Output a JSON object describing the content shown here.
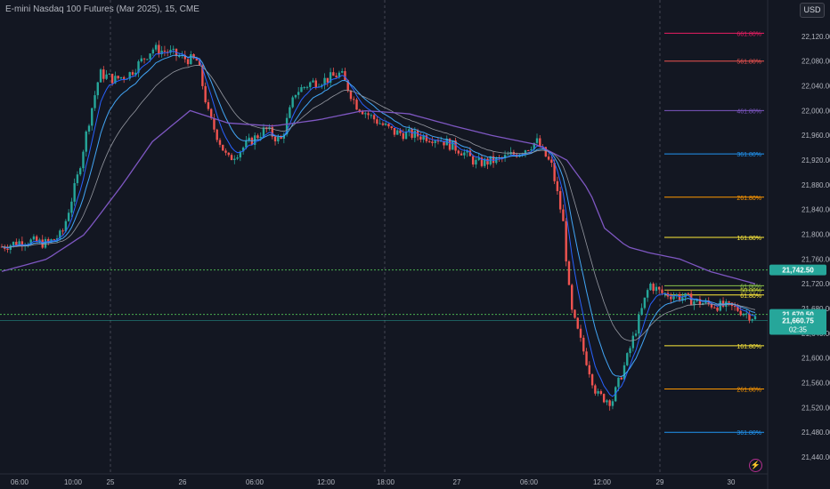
{
  "header": {
    "title": "E-mini Nasdaq 100 Futures (Mar 2025), 15, CME",
    "currency": "USD"
  },
  "colors": {
    "background": "#131722",
    "up": "#26a69a",
    "down": "#ef5350",
    "grid": "#2a2e39",
    "ema_fast": "#2962ff",
    "ema_mid": "#42a5f5",
    "ema_slow": "#7e57c2",
    "ma_thin": "#9598a1",
    "dotted": "#4caf50"
  },
  "icons": {
    "bolt": "lightning-icon"
  },
  "chart_data": {
    "type": "candlestick",
    "x_axis": {
      "ticks": [
        "06:00",
        "10:00",
        "25",
        "26",
        "06:00",
        "12:00",
        "18:00",
        "27",
        "06:00",
        "12:00",
        "29",
        "30"
      ],
      "day_separators": [
        "25",
        "26",
        "27",
        "29",
        "30"
      ]
    },
    "y_axis": {
      "range": [
        21420,
        22150
      ],
      "ticks": [
        "22,120.00",
        "22,080.00",
        "22,040.00",
        "22,000.00",
        "21,960.00",
        "21,920.00",
        "21,880.00",
        "21,840.00",
        "21,800.00",
        "21,760.00",
        "21,720.00",
        "21,680.00",
        "21,640.00",
        "21,600.00",
        "21,560.00",
        "21,520.00",
        "21,480.00",
        "21,440.00"
      ]
    },
    "last_price": {
      "value": 21660.75,
      "label": "21,660.75",
      "countdown": "02:35"
    },
    "price_labels": [
      {
        "value": 21742.5,
        "label": "21,742.50",
        "color": "#26a69a"
      },
      {
        "value": 21670.5,
        "label": "21,670.50",
        "color": "#26a69a"
      }
    ],
    "fib_levels": [
      {
        "label": "661.80%",
        "value": 22125,
        "color": "#e91e63"
      },
      {
        "label": "561.80%",
        "value": 22080,
        "color": "#ef5350"
      },
      {
        "label": "461.80%",
        "value": 22000,
        "color": "#7e57c2"
      },
      {
        "label": "361.80%",
        "value": 21930,
        "color": "#2196f3"
      },
      {
        "label": "261.80%",
        "value": 21860,
        "color": "#ff9800"
      },
      {
        "label": "161.80%",
        "value": 21795,
        "color": "#ffeb3b"
      },
      {
        "label": "61.80%",
        "value": 21717,
        "color": "#8bc34a"
      },
      {
        "label": "50.00%",
        "value": 21710,
        "color": "#cddc39"
      },
      {
        "label": "61.80%",
        "value": 21702,
        "color": "#ffeb3b"
      },
      {
        "label": "161.80%",
        "value": 21620,
        "color": "#ffeb3b"
      },
      {
        "label": "261.80%",
        "value": 21550,
        "color": "#ff9800"
      },
      {
        "label": "361.80%",
        "value": 21480,
        "color": "#2196f3"
      }
    ],
    "price_path": [
      [
        0,
        21780
      ],
      [
        0.03,
        21790
      ],
      [
        0.06,
        21785
      ],
      [
        0.08,
        21800
      ],
      [
        0.1,
        21890
      ],
      [
        0.115,
        21980
      ],
      [
        0.13,
        22060
      ],
      [
        0.15,
        22050
      ],
      [
        0.17,
        22060
      ],
      [
        0.2,
        22100
      ],
      [
        0.22,
        22095
      ],
      [
        0.24,
        22085
      ],
      [
        0.26,
        22080
      ],
      [
        0.275,
        21990
      ],
      [
        0.3,
        21920
      ],
      [
        0.32,
        21940
      ],
      [
        0.35,
        21970
      ],
      [
        0.37,
        21950
      ],
      [
        0.39,
        22030
      ],
      [
        0.41,
        22045
      ],
      [
        0.43,
        22050
      ],
      [
        0.45,
        22060
      ],
      [
        0.47,
        22010
      ],
      [
        0.49,
        21990
      ],
      [
        0.52,
        21965
      ],
      [
        0.55,
        21960
      ],
      [
        0.58,
        21955
      ],
      [
        0.61,
        21935
      ],
      [
        0.63,
        21915
      ],
      [
        0.66,
        21920
      ],
      [
        0.69,
        21935
      ],
      [
        0.71,
        21950
      ],
      [
        0.73,
        21910
      ],
      [
        0.745,
        21820
      ],
      [
        0.755,
        21680
      ],
      [
        0.77,
        21620
      ],
      [
        0.79,
        21540
      ],
      [
        0.81,
        21530
      ],
      [
        0.83,
        21600
      ],
      [
        0.85,
        21680
      ],
      [
        0.86,
        21720
      ],
      [
        0.875,
        21705
      ],
      [
        0.9,
        21700
      ],
      [
        0.925,
        21690
      ],
      [
        0.95,
        21685
      ],
      [
        0.975,
        21680
      ],
      [
        1.0,
        21665
      ]
    ],
    "ema_slow_path": [
      [
        0,
        21740
      ],
      [
        0.06,
        21760
      ],
      [
        0.11,
        21800
      ],
      [
        0.16,
        21880
      ],
      [
        0.2,
        21950
      ],
      [
        0.25,
        22000
      ],
      [
        0.3,
        21980
      ],
      [
        0.36,
        21975
      ],
      [
        0.42,
        21985
      ],
      [
        0.48,
        22000
      ],
      [
        0.54,
        21995
      ],
      [
        0.6,
        21975
      ],
      [
        0.65,
        21960
      ],
      [
        0.71,
        21945
      ],
      [
        0.75,
        21920
      ],
      [
        0.78,
        21870
      ],
      [
        0.8,
        21810
      ],
      [
        0.83,
        21780
      ],
      [
        0.86,
        21770
      ],
      [
        0.9,
        21760
      ],
      [
        0.94,
        21740
      ],
      [
        1.0,
        21720
      ]
    ]
  }
}
